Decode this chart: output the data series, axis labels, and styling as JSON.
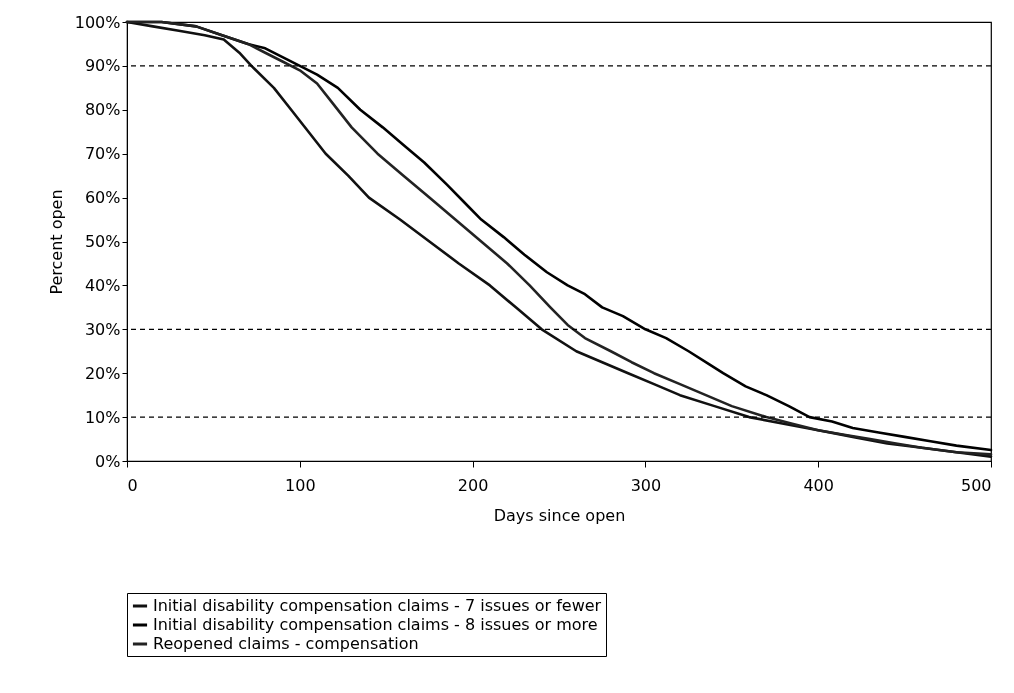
{
  "chart_data": {
    "type": "line",
    "xlabel": "Days since open",
    "ylabel": "Percent open",
    "xlim": [
      0,
      500
    ],
    "xticks": [
      0,
      100,
      200,
      300,
      400,
      500
    ],
    "ylim": [
      0,
      100
    ],
    "yticks": [
      {
        "value": 0,
        "label": "0%"
      },
      {
        "value": 10,
        "label": "10%"
      },
      {
        "value": 20,
        "label": "20%"
      },
      {
        "value": 30,
        "label": "30%"
      },
      {
        "value": 40,
        "label": "40%"
      },
      {
        "value": 50,
        "label": "50%"
      },
      {
        "value": 60,
        "label": "60%"
      },
      {
        "value": 70,
        "label": "70%"
      },
      {
        "value": 80,
        "label": "80%"
      },
      {
        "value": 90,
        "label": "90%"
      },
      {
        "value": 100,
        "label": "100%"
      }
    ],
    "legend": "bottom",
    "grid": false,
    "marker": "none",
    "line_style": "solid",
    "ref_lines": [
      {
        "axis": "y",
        "value": 90,
        "line_style": "dashed",
        "color": "#000000"
      },
      {
        "axis": "y",
        "value": 30,
        "line_style": "dashed",
        "color": "#000000"
      },
      {
        "axis": "y",
        "value": 10,
        "line_style": "dashed",
        "color": "#000000"
      }
    ],
    "series": [
      {
        "name": "Initial disability compensation claims - 7 issues or fewer",
        "color": "#111111",
        "x": [
          0,
          15,
          30,
          45,
          56,
          65,
          72,
          85,
          95,
          105,
          115,
          128,
          140,
          158,
          175,
          192,
          210,
          225,
          240,
          260,
          275,
          290,
          305,
          320,
          340,
          360,
          380,
          400,
          420,
          440,
          460,
          480,
          500
        ],
        "values": [
          100,
          99,
          98,
          97,
          96,
          93,
          90,
          85,
          80,
          75,
          70,
          65,
          60,
          55,
          50,
          45,
          40,
          35,
          30,
          25,
          22.5,
          20,
          17.5,
          15,
          12.5,
          10,
          8.5,
          7,
          5.5,
          4,
          3,
          2,
          1
        ]
      },
      {
        "name": "Initial disability compensation claims - 8 issues or more",
        "color": "#000000",
        "x": [
          0,
          20,
          40,
          55,
          70,
          80,
          90,
          100,
          110,
          122,
          135,
          148,
          160,
          172,
          185,
          195,
          205,
          218,
          230,
          243,
          255,
          265,
          275,
          287,
          300,
          312,
          325,
          337,
          345,
          358,
          370,
          383,
          395,
          408,
          420,
          435,
          450,
          465,
          480,
          500
        ],
        "values": [
          100,
          100,
          99,
          97,
          95,
          94,
          92,
          90,
          88,
          85,
          80,
          76,
          72,
          68,
          63,
          59,
          55,
          51,
          47,
          43,
          40,
          38,
          35,
          33,
          30,
          28,
          25,
          22,
          20,
          17,
          15,
          12.5,
          10,
          9,
          7.5,
          6.5,
          5.5,
          4.5,
          3.5,
          2.5
        ]
      },
      {
        "name": "Reopened claims - compensation",
        "color": "#222222",
        "x": [
          0,
          20,
          40,
          55,
          70,
          80,
          90,
          100,
          110,
          120,
          130,
          145,
          160,
          175,
          190,
          205,
          220,
          233,
          245,
          255,
          265,
          280,
          292,
          305,
          320,
          335,
          350,
          370,
          385,
          400,
          415,
          430,
          445,
          460,
          480,
          500
        ],
        "values": [
          100,
          100,
          99,
          97,
          95,
          93,
          91,
          89,
          86,
          81,
          76,
          70,
          65,
          60,
          55,
          50,
          45,
          40,
          35,
          31,
          28,
          25,
          22.5,
          20,
          17.5,
          15,
          12.5,
          10,
          8.5,
          7,
          6,
          5,
          4,
          3,
          2,
          1.5
        ]
      }
    ]
  }
}
